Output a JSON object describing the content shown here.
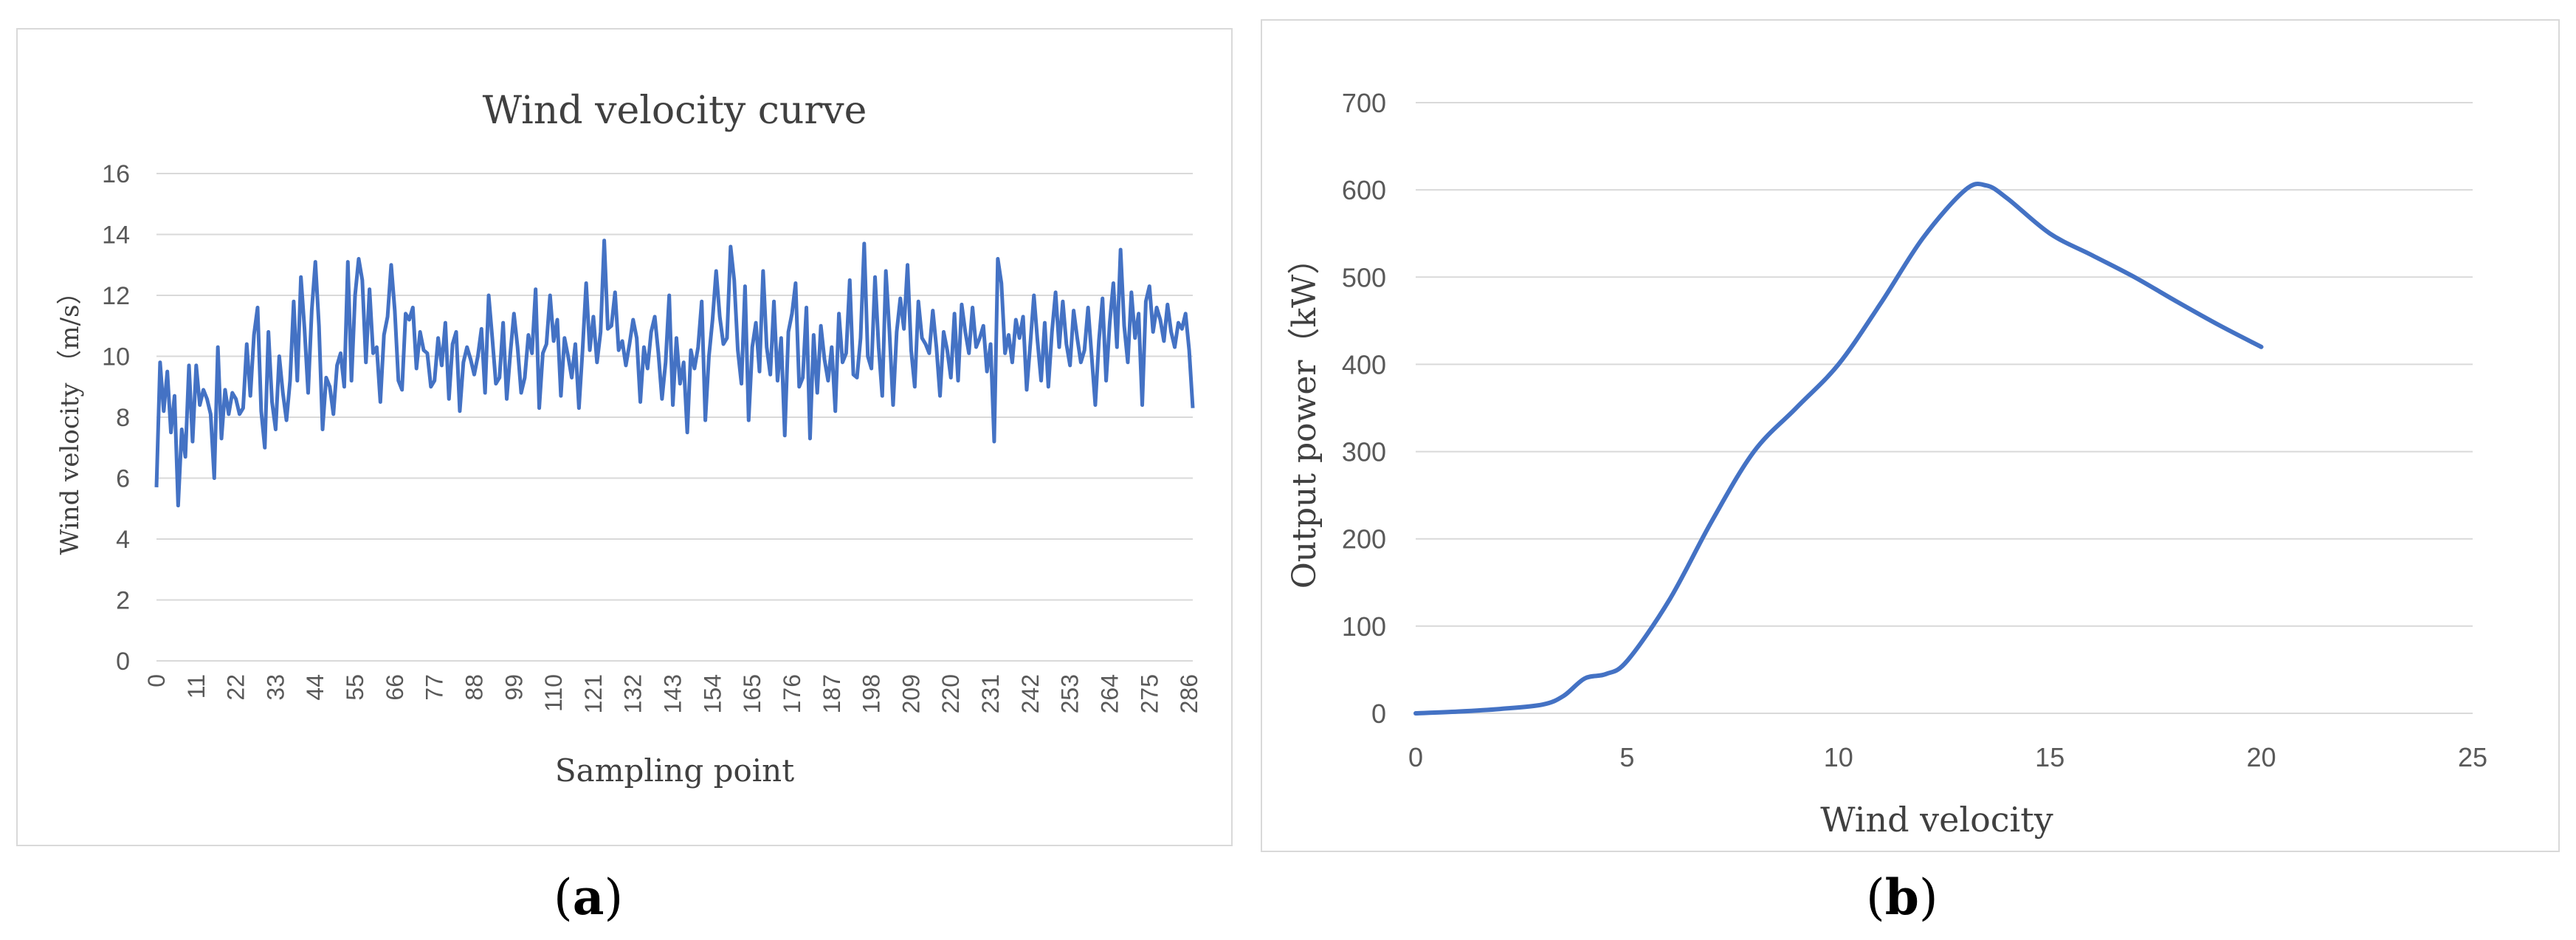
{
  "chart_data": [
    {
      "type": "line",
      "title": "Wind velocity curve",
      "xlabel": "Sampling point",
      "ylabel": "Wind velocity （m/s）",
      "ylim": [
        0,
        16
      ],
      "yticks": [
        0,
        2,
        4,
        6,
        8,
        10,
        12,
        14,
        16
      ],
      "xticks": [
        "0",
        "11",
        "22",
        "33",
        "44",
        "55",
        "66",
        "77",
        "88",
        "99",
        "110",
        "121",
        "132",
        "143",
        "154",
        "165",
        "176",
        "187",
        "198",
        "209",
        "220",
        "231",
        "242",
        "253",
        "264",
        "275",
        "286"
      ],
      "xlim": [
        0,
        287
      ],
      "grid": "horizontal",
      "color": "#4472c4",
      "series": [
        {
          "values": [
            5.7,
            9.8,
            8.2,
            9.5,
            7.5,
            8.7,
            5.1,
            7.6,
            6.7,
            9.7,
            7.2,
            9.7,
            8.4,
            8.9,
            8.6,
            8.1,
            6.0,
            10.3,
            7.3,
            8.9,
            8.1,
            8.8,
            8.6,
            8.1,
            8.3,
            10.4,
            8.7,
            10.7,
            11.6,
            8.2,
            7.0,
            10.8,
            8.5,
            7.6,
            10.0,
            8.8,
            7.9,
            9.2,
            11.8,
            9.2,
            12.6,
            10.9,
            8.8,
            11.5,
            13.1,
            11.0,
            7.6,
            9.3,
            9.0,
            8.1,
            9.7,
            10.1,
            9.0,
            13.1,
            9.2,
            12.0,
            13.2,
            12.5,
            9.8,
            12.2,
            10.1,
            10.3,
            8.5,
            10.7,
            11.3,
            13.0,
            11.5,
            9.2,
            8.9,
            11.4,
            11.2,
            11.6,
            9.6,
            10.8,
            10.2,
            10.1,
            9.0,
            9.2,
            10.6,
            9.7,
            11.1,
            8.6,
            10.4,
            10.8,
            8.2,
            9.8,
            10.3,
            9.9,
            9.4,
            10.0,
            10.9,
            8.8,
            12.0,
            10.6,
            9.1,
            9.3,
            11.1,
            8.6,
            10.1,
            11.4,
            10.3,
            8.8,
            9.3,
            10.7,
            10.1,
            12.2,
            8.3,
            10.1,
            10.4,
            12.0,
            10.5,
            11.2,
            8.7,
            10.6,
            10.0,
            9.3,
            10.4,
            8.3,
            10.2,
            12.4,
            10.2,
            11.3,
            9.8,
            10.8,
            13.8,
            10.9,
            11.0,
            12.1,
            10.2,
            10.5,
            9.7,
            10.4,
            11.2,
            10.6,
            8.5,
            10.3,
            9.6,
            10.8,
            11.3,
            10.1,
            8.6,
            9.8,
            12.0,
            8.4,
            10.6,
            9.1,
            9.8,
            7.5,
            10.2,
            9.6,
            10.3,
            11.8,
            7.9,
            10.0,
            11.2,
            12.8,
            11.3,
            10.4,
            10.6,
            13.6,
            12.5,
            10.2,
            9.1,
            12.3,
            7.9,
            10.3,
            11.1,
            9.5,
            12.8,
            10.3,
            9.4,
            11.8,
            9.2,
            10.6,
            7.4,
            10.8,
            11.4,
            12.4,
            9.0,
            9.3,
            11.6,
            7.3,
            10.7,
            8.8,
            11.0,
            9.9,
            9.2,
            10.3,
            8.2,
            11.4,
            9.8,
            10.1,
            12.5,
            9.4,
            9.3,
            10.6,
            13.7,
            10.0,
            9.6,
            12.6,
            10.3,
            8.7,
            12.8,
            10.8,
            8.4,
            10.8,
            11.9,
            10.9,
            13.0,
            10.2,
            9.0,
            11.8,
            10.6,
            10.4,
            10.1,
            11.5,
            10.3,
            8.7,
            10.8,
            10.2,
            9.3,
            11.4,
            9.2,
            11.7,
            10.8,
            10.1,
            11.6,
            10.3,
            10.6,
            11.0,
            9.5,
            10.4,
            7.2,
            13.2,
            12.4,
            10.1,
            10.7,
            9.8,
            11.2,
            10.6,
            11.3,
            8.9,
            10.4,
            12.0,
            10.5,
            9.2,
            11.1,
            9.0,
            10.8,
            12.1,
            10.3,
            11.8,
            10.4,
            9.7,
            11.5,
            10.6,
            9.8,
            10.2,
            11.6,
            10.0,
            8.4,
            10.5,
            11.9,
            9.2,
            11.1,
            12.4,
            10.3,
            13.5,
            11.0,
            9.8,
            12.1,
            10.6,
            11.4,
            8.4,
            11.8,
            12.3,
            10.8,
            11.6,
            11.2,
            10.5,
            11.7,
            10.8,
            10.3,
            11.1,
            10.9,
            11.4,
            10.2,
            8.3
          ]
        }
      ]
    },
    {
      "type": "line",
      "title": "",
      "xlabel": "Wind velocity",
      "ylabel": "Output power（kW）",
      "xlim": [
        0,
        25
      ],
      "ylim": [
        0,
        700
      ],
      "xticks": [
        0,
        5,
        10,
        15,
        20,
        25
      ],
      "yticks": [
        0,
        100,
        200,
        300,
        400,
        500,
        600,
        700
      ],
      "grid": "horizontal",
      "color": "#4472c4",
      "series": [
        {
          "x": [
            0,
            1,
            2,
            3,
            3.5,
            4,
            4.5,
            5,
            6,
            7,
            8,
            9,
            10,
            11,
            12,
            13,
            13.5,
            14,
            15,
            16,
            17,
            18,
            19,
            20
          ],
          "values": [
            0,
            2,
            5,
            10,
            20,
            40,
            45,
            60,
            130,
            220,
            300,
            350,
            400,
            470,
            545,
            600,
            605,
            590,
            550,
            525,
            500,
            472,
            445,
            420
          ]
        }
      ]
    }
  ],
  "captions": {
    "a_open": "(",
    "a_letter": "a",
    "a_close": ")",
    "b_open": "(",
    "b_letter": "b",
    "b_close": ")"
  }
}
